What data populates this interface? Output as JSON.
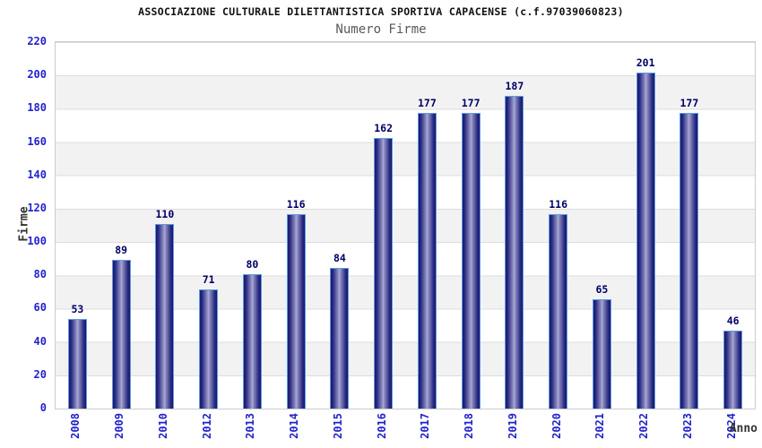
{
  "header": {
    "title": "ASSOCIAZIONE CULTURALE DILETTANTISTICA SPORTIVA CAPACENSE (c.f.97039060823)",
    "subtitle": "Numero Firme"
  },
  "chart_data": {
    "type": "bar",
    "title": "Numero Firme",
    "categories": [
      "2008",
      "2009",
      "2010",
      "2012",
      "2013",
      "2014",
      "2015",
      "2016",
      "2017",
      "2018",
      "2019",
      "2020",
      "2021",
      "2022",
      "2023",
      "2024"
    ],
    "values": [
      53,
      89,
      110,
      71,
      80,
      116,
      84,
      162,
      177,
      177,
      187,
      116,
      65,
      201,
      177,
      46
    ],
    "xlabel": "Anno",
    "ylabel": "Firme",
    "ylim": [
      0,
      220
    ],
    "ytick_step": 20,
    "yticks": [
      0,
      20,
      40,
      60,
      80,
      100,
      120,
      140,
      160,
      180,
      200,
      220
    ],
    "grid": true,
    "legend": "none",
    "colors": {
      "bar_dark": "#17176b",
      "bar_light": "#adadd6",
      "bar_border": "#5c9de2",
      "tick_label": "#2222cc",
      "value_label": "#000066",
      "axis_title": "#333333",
      "band": "#f2f2f2",
      "gridline": "#dcdcdc",
      "title": "#111111",
      "subtitle": "#595959"
    }
  }
}
